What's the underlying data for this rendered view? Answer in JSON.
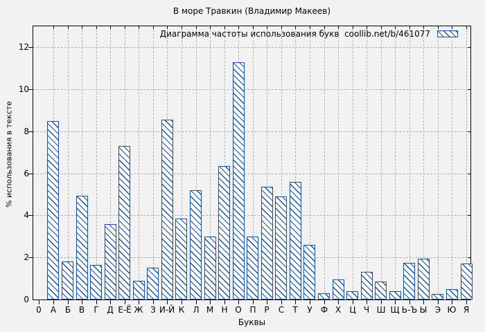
{
  "chart_data": {
    "type": "bar",
    "title": "В море Травкин (Владимир Макеев)",
    "legend_label": "Диаграмма частоты использования букв  coollib.net/b/461077",
    "xlabel": "Буквы",
    "ylabel": "% использования в тексте",
    "x_origin_label": "0",
    "categories": [
      "А",
      "Б",
      "В",
      "Г",
      "Д",
      "Е-Ё",
      "Ж",
      "З",
      "И-Й",
      "К",
      "Л",
      "М",
      "Н",
      "О",
      "П",
      "Р",
      "С",
      "Т",
      "У",
      "Ф",
      "Х",
      "Ц",
      "Ч",
      "Ш",
      "Щ",
      "Ь-Ъ",
      "Ы",
      "Э",
      "Ю",
      "Я"
    ],
    "values": [
      8.5,
      1.8,
      4.95,
      1.65,
      3.6,
      7.3,
      0.9,
      1.5,
      8.55,
      3.85,
      5.2,
      3.0,
      6.35,
      11.3,
      3.0,
      5.35,
      4.9,
      5.6,
      2.6,
      0.3,
      0.95,
      0.4,
      1.3,
      0.85,
      0.4,
      1.75,
      1.95,
      0.25,
      0.5,
      1.7
    ],
    "ylim": [
      0,
      13
    ],
    "yticks": [
      0,
      2,
      4,
      6,
      8,
      10,
      12
    ],
    "grid": true,
    "legend_position": "top-right-inside",
    "colors": {
      "bar_border": "#1550a5",
      "bar_hatch": "#1550a5",
      "bar_fill": "#ffffff",
      "background": "#f2f2f2",
      "grid": "#b0b0b0",
      "axis": "#000000",
      "text": "#000000"
    }
  }
}
